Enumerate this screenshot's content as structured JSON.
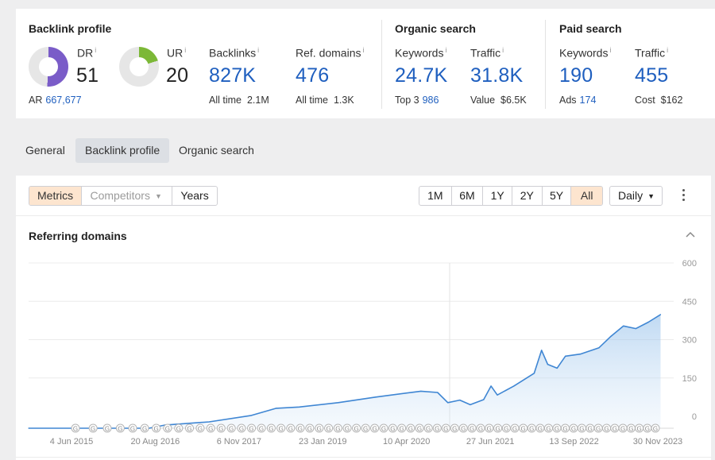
{
  "backlink_profile": {
    "title": "Backlink profile",
    "dr": {
      "label": "DR",
      "info": "i",
      "value": "51",
      "fill": 0.51,
      "color": "#7a5cc8"
    },
    "ur": {
      "label": "UR",
      "info": "i",
      "value": "20",
      "fill": 0.2,
      "color": "#7cb837"
    },
    "ar": {
      "label": "AR",
      "value": "667,677"
    },
    "backlinks": {
      "label": "Backlinks",
      "info": "i",
      "value": "827K",
      "sub_label": "All time",
      "sub_value": "2.1M"
    },
    "ref_domains": {
      "label": "Ref. domains",
      "info": "i",
      "value": "476",
      "sub_label": "All time",
      "sub_value": "1.3K"
    }
  },
  "organic_search": {
    "title": "Organic search",
    "keywords": {
      "label": "Keywords",
      "info": "i",
      "value": "24.7K",
      "sub_label": "Top 3",
      "sub_value": "986"
    },
    "traffic": {
      "label": "Traffic",
      "info": "i",
      "value": "31.8K",
      "sub_label": "Value",
      "sub_value": "$6.5K"
    }
  },
  "paid_search": {
    "title": "Paid search",
    "keywords": {
      "label": "Keywords",
      "info": "i",
      "value": "190",
      "sub_label": "Ads",
      "sub_value": "174"
    },
    "traffic": {
      "label": "Traffic",
      "info": "i",
      "value": "455",
      "sub_label": "Cost",
      "sub_value": "$162"
    }
  },
  "tabs": [
    "General",
    "Backlink profile",
    "Organic search"
  ],
  "active_tab": "Backlink profile",
  "view_toggle": {
    "metrics": "Metrics",
    "competitors": "Competitors",
    "years": "Years"
  },
  "ranges": [
    "1M",
    "6M",
    "1Y",
    "2Y",
    "5Y",
    "All"
  ],
  "active_range": "All",
  "granularity": "Daily",
  "colors": {
    "accent": "#1f5fbf",
    "line": "#3f86d3",
    "active_toggle": "#fde5cf"
  },
  "chart_data": {
    "type": "area",
    "title": "Referring domains",
    "x_tick_labels": [
      "4 Jun 2015",
      "20 Aug 2016",
      "6 Nov 2017",
      "23 Jan 2019",
      "10 Apr 2020",
      "27 Jun 2021",
      "13 Sep 2022",
      "30 Nov 2023"
    ],
    "y_tick_labels": [
      "600",
      "450",
      "300",
      "150",
      "0"
    ],
    "ylim": [
      0,
      600
    ],
    "xlim": [
      "2015-06-04",
      "2024-01-10"
    ],
    "series": [
      {
        "values": [
          {
            "x": "2015-06-04",
            "y": 0
          },
          {
            "x": "2017-01-15",
            "y": 0
          },
          {
            "x": "2017-04-01",
            "y": 12
          },
          {
            "x": "2017-11-06",
            "y": 25
          },
          {
            "x": "2018-06-01",
            "y": 50
          },
          {
            "x": "2018-10-01",
            "y": 78
          },
          {
            "x": "2019-01-23",
            "y": 83
          },
          {
            "x": "2019-08-01",
            "y": 100
          },
          {
            "x": "2020-02-01",
            "y": 122
          },
          {
            "x": "2020-09-10",
            "y": 145
          },
          {
            "x": "2020-12-01",
            "y": 140
          },
          {
            "x": "2021-01-20",
            "y": 100
          },
          {
            "x": "2021-03-20",
            "y": 110
          },
          {
            "x": "2021-05-10",
            "y": 92
          },
          {
            "x": "2021-07-15",
            "y": 112
          },
          {
            "x": "2021-08-20",
            "y": 165
          },
          {
            "x": "2021-09-20",
            "y": 130
          },
          {
            "x": "2021-12-10",
            "y": 165
          },
          {
            "x": "2022-03-20",
            "y": 215
          },
          {
            "x": "2022-04-25",
            "y": 305
          },
          {
            "x": "2022-05-25",
            "y": 250
          },
          {
            "x": "2022-07-10",
            "y": 235
          },
          {
            "x": "2022-08-20",
            "y": 282
          },
          {
            "x": "2022-11-01",
            "y": 290
          },
          {
            "x": "2023-02-01",
            "y": 315
          },
          {
            "x": "2023-04-01",
            "y": 360
          },
          {
            "x": "2023-06-01",
            "y": 400
          },
          {
            "x": "2023-08-01",
            "y": 390
          },
          {
            "x": "2023-10-01",
            "y": 415
          },
          {
            "x": "2023-11-30",
            "y": 445
          }
        ]
      }
    ],
    "grid": true,
    "google_update_markers": 62
  }
}
